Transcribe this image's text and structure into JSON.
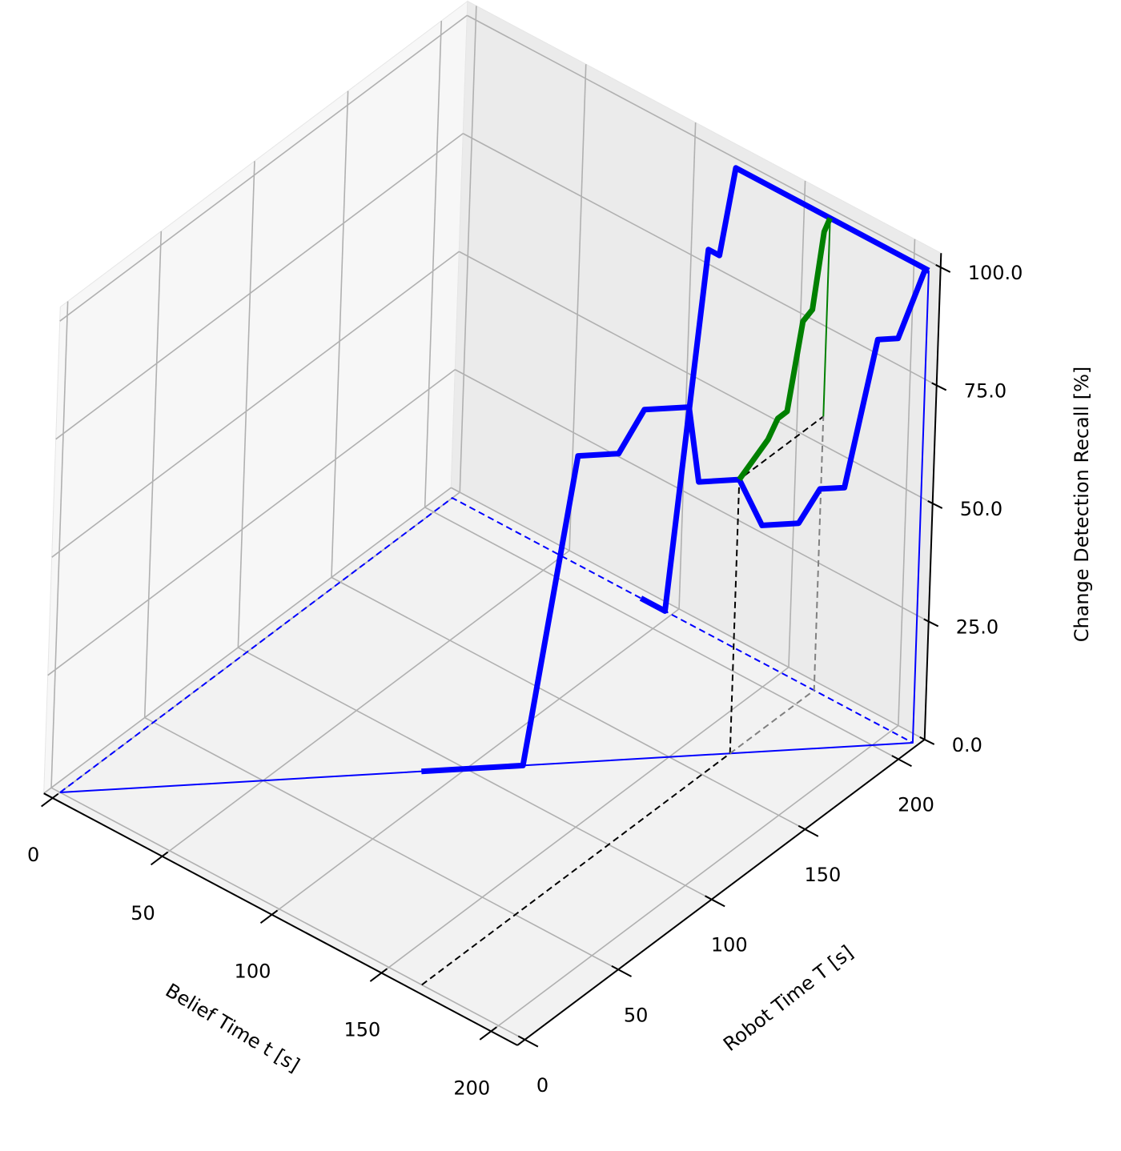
{
  "chart_data": {
    "type": "line3d",
    "xlabel": "Belief Time t [s]",
    "ylabel": "Robot Time T [s]",
    "zlabel": "Change Detection Recall [%]",
    "xlim": [
      -4,
      212
    ],
    "ylim": [
      -4,
      214
    ],
    "zlim": [
      0,
      103
    ],
    "xticks": [
      0,
      50,
      100,
      150,
      200
    ],
    "yticks": [
      0,
      50,
      100,
      150,
      200
    ],
    "zticks": [
      {
        "value": 0,
        "label": "0.0"
      },
      {
        "value": 25,
        "label": "25.0"
      },
      {
        "value": 50,
        "label": "50.0"
      },
      {
        "value": 75,
        "label": "75.0"
      },
      {
        "value": 100,
        "label": "100.0"
      }
    ],
    "grid": true,
    "series": [
      {
        "color": "#0000ff",
        "linewidth": 2,
        "linestyle": "solid",
        "x": [
          0,
          210,
          210
        ],
        "y": [
          0,
          210,
          210
        ],
        "z": [
          0,
          0,
          100
        ]
      },
      {
        "color": "#0000ff",
        "linewidth": 2,
        "linestyle": "dashed",
        "x": [
          0,
          0,
          210
        ],
        "y": [
          0,
          210,
          210
        ],
        "z": [
          0,
          0,
          0
        ]
      },
      {
        "color": "#000000",
        "linewidth": 2,
        "linestyle": "dashed",
        "x": [
          165,
          165,
          165,
          165
        ],
        "y": [
          0,
          165,
          165,
          210
        ],
        "z": [
          0,
          0,
          58,
          58
        ]
      },
      {
        "color": "#808080",
        "linewidth": 2,
        "linestyle": "dashed",
        "x": [
          165,
          165,
          165
        ],
        "y": [
          165,
          210,
          210
        ],
        "z": [
          0,
          0,
          58
        ]
      },
      {
        "color": "#008000",
        "linewidth": 2,
        "linestyle": "solid",
        "x": [
          165,
          165
        ],
        "y": [
          210,
          210
        ],
        "z": [
          100,
          58
        ]
      },
      {
        "color": "#0000ff",
        "linewidth": 7,
        "linestyle": "solid",
        "x": [
          89,
          114,
          125,
          135,
          141,
          152,
          155,
          165,
          171,
          180,
          185,
          191,
          198,
          203,
          209,
          210
        ],
        "y": [
          89,
          114,
          125,
          135,
          141,
          152,
          155,
          165,
          171,
          180,
          185,
          191,
          198,
          203,
          209,
          210
        ],
        "z": [
          0,
          0,
          65,
          65,
          74,
          74,
          58,
          58,
          48,
          48,
          55,
          55,
          86,
          86,
          100,
          100
        ]
      },
      {
        "color": "#0000ff",
        "linewidth": 7,
        "linestyle": "solid",
        "x": [
          86,
          97,
          111,
          116,
          122,
          210
        ],
        "y": [
          210,
          210,
          210,
          210,
          210,
          210
        ],
        "z": [
          0,
          0,
          80,
          80,
          100,
          100
        ]
      },
      {
        "color": "#008000",
        "linewidth": 7,
        "linestyle": "solid",
        "x": [
          165,
          165,
          165,
          165,
          165,
          165,
          165,
          165
        ],
        "y": [
          165,
          180,
          185,
          190,
          197,
          202,
          207,
          210
        ],
        "z": [
          58,
          62,
          65,
          65,
          82,
          83,
          98,
          100
        ]
      }
    ]
  }
}
